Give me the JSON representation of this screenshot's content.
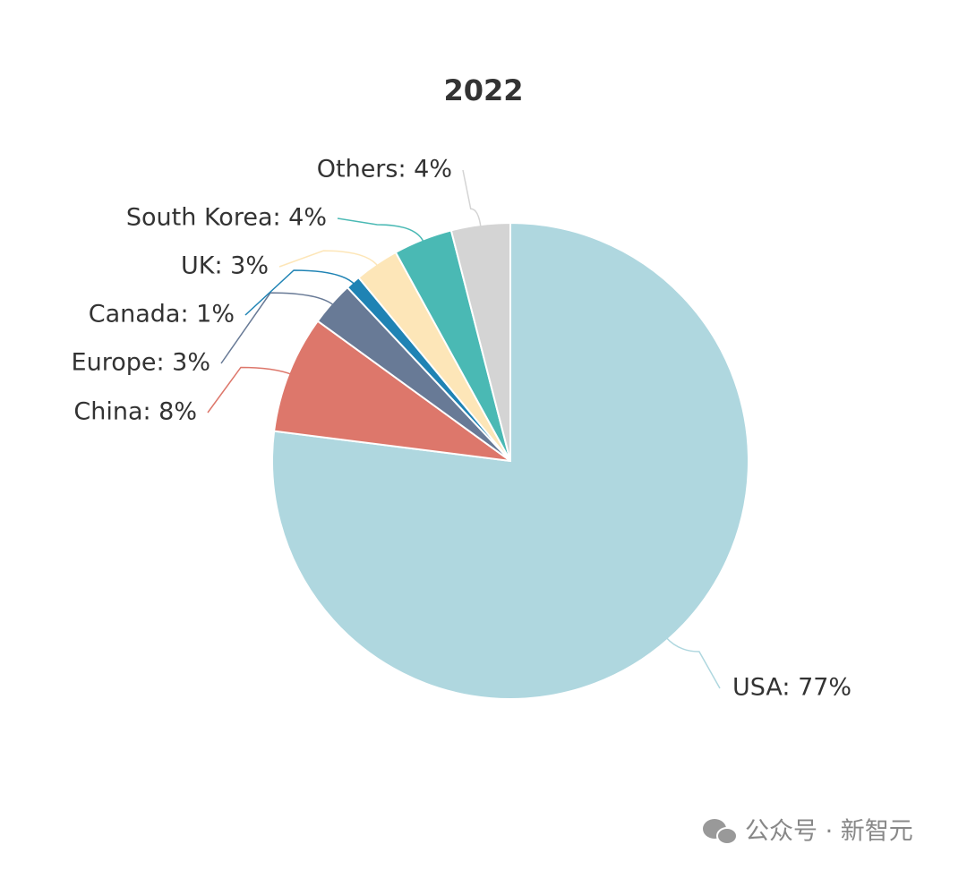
{
  "chart_data": {
    "type": "pie",
    "title": "2022",
    "values": [
      77,
      8,
      3,
      1,
      3,
      4,
      4
    ],
    "value_labels": [
      "USA: 77%",
      "China: 8%",
      "Europe: 3%",
      "Canada: 1%",
      "UK: 3%",
      "South Korea: 4%",
      "Others: 4%"
    ],
    "colors": [
      "#afd7df",
      "#dd776b",
      "#687a96",
      "#1f83b4",
      "#fde6b8",
      "#4ab9b4",
      "#d4d4d4"
    ]
  },
  "watermark": "公众号 · 新智元"
}
